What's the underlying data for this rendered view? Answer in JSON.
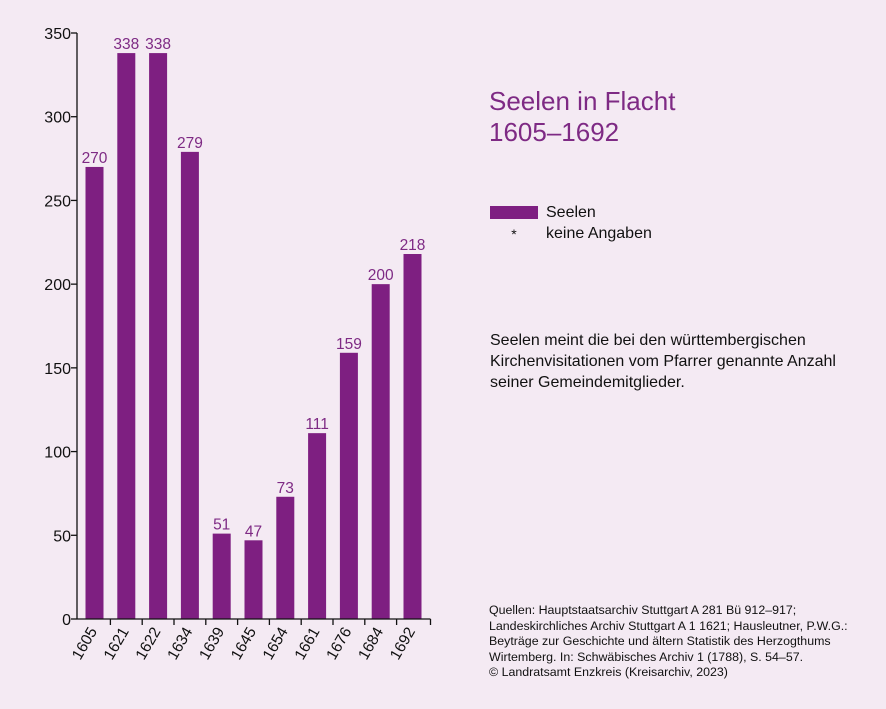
{
  "chart_data": {
    "type": "bar",
    "categories": [
      "1605",
      "1621",
      "1622",
      "1634",
      "1639",
      "1645",
      "1654",
      "1661",
      "1676",
      "1684",
      "1692"
    ],
    "values": [
      270,
      338,
      338,
      279,
      51,
      47,
      73,
      111,
      159,
      200,
      218
    ],
    "ylim": [
      0,
      350
    ],
    "yticks": [
      0,
      50,
      100,
      150,
      200,
      250,
      300,
      350
    ],
    "bar_color": "#7e1f81",
    "label_color": "#7e2a84",
    "grid": false,
    "legend_position": "right"
  },
  "title": {
    "line1": "Seelen in Flacht",
    "line2": "1605–1692"
  },
  "legend": {
    "series_label": "Seelen",
    "marker_symbol": "*",
    "marker_label": "keine Angaben"
  },
  "note": "Seelen meint die bei den württembergischen Kirchenvisitationen vom Pfarrer genannte Anzahl seiner Gemeindemitglieder.",
  "sources": {
    "lines": [
      "Quellen: Hauptstaatsarchiv Stuttgart A 281 Bü 912–917;",
      "Landeskirchliches Archiv Stuttgart A 1 1621; Hausleutner, P.W.G.:",
      "Beyträge zur Geschichte und ältern Statistik des Herzogthums",
      "Wirtemberg. In: Schwäbisches Archiv 1 (1788), S. 54–57.",
      "© Landratsamt Enzkreis (Kreisarchiv, 2023)"
    ]
  }
}
